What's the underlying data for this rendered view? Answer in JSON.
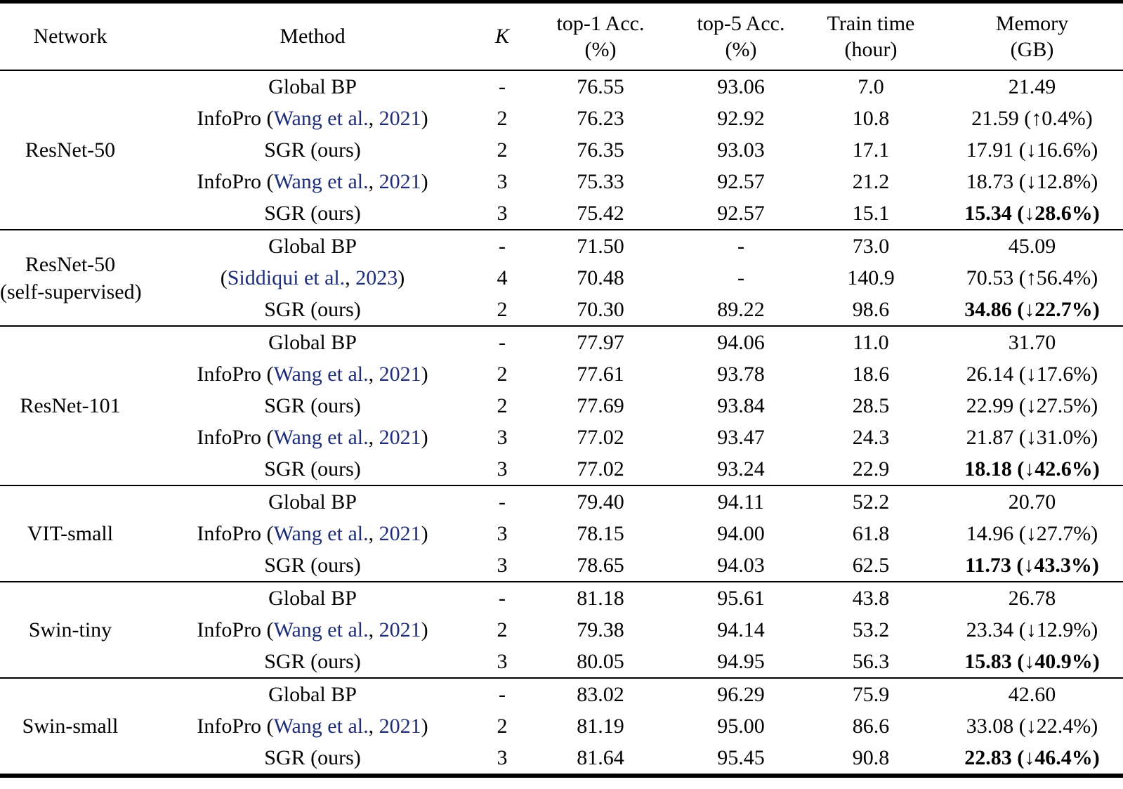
{
  "table": {
    "citation_color": "#1e2d78",
    "header": {
      "network": "Network",
      "method": "Method",
      "k": "K",
      "top1": [
        "top-1 Acc.",
        "(%)"
      ],
      "top5": [
        "top-5 Acc.",
        "(%)"
      ],
      "train": [
        "Train time",
        "(hour)"
      ],
      "memory": [
        "Memory",
        "(GB)"
      ]
    },
    "groups": [
      {
        "network": [
          "ResNet-50"
        ],
        "rows": [
          {
            "method": [
              {
                "t": "Global BP"
              }
            ],
            "k": "-",
            "top1": "76.55",
            "top5": "93.06",
            "train": "7.0",
            "memory": "21.49",
            "bold": false
          },
          {
            "method": [
              {
                "t": "InfoPro ("
              },
              {
                "t": "Wang et al.",
                "cite": true
              },
              {
                "t": ", "
              },
              {
                "t": "2021",
                "cite": true
              },
              {
                "t": ")"
              }
            ],
            "k": "2",
            "top1": "76.23",
            "top5": "92.92",
            "train": "10.8",
            "memory": "21.59 (↑0.4%)",
            "bold": false
          },
          {
            "method": [
              {
                "t": "SGR (ours)"
              }
            ],
            "k": "2",
            "top1": "76.35",
            "top5": "93.03",
            "train": "17.1",
            "memory": "17.91 (↓16.6%)",
            "bold": false
          },
          {
            "method": [
              {
                "t": "InfoPro ("
              },
              {
                "t": "Wang et al.",
                "cite": true
              },
              {
                "t": ", "
              },
              {
                "t": "2021",
                "cite": true
              },
              {
                "t": ")"
              }
            ],
            "k": "3",
            "top1": "75.33",
            "top5": "92.57",
            "train": "21.2",
            "memory": "18.73 (↓12.8%)",
            "bold": false
          },
          {
            "method": [
              {
                "t": "SGR (ours)"
              }
            ],
            "k": "3",
            "top1": "75.42",
            "top5": "92.57",
            "train": "15.1",
            "memory": "15.34 (↓28.6%)",
            "bold": true
          }
        ]
      },
      {
        "network": [
          "ResNet-50",
          "(self-supervised)"
        ],
        "rows": [
          {
            "method": [
              {
                "t": "Global BP"
              }
            ],
            "k": "-",
            "top1": "71.50",
            "top5": "-",
            "train": "73.0",
            "memory": "45.09",
            "bold": false
          },
          {
            "method": [
              {
                "t": "("
              },
              {
                "t": "Siddiqui et al.",
                "cite": true
              },
              {
                "t": ", "
              },
              {
                "t": "2023",
                "cite": true
              },
              {
                "t": ")"
              }
            ],
            "k": "4",
            "top1": "70.48",
            "top5": "-",
            "train": "140.9",
            "memory": "70.53 (↑56.4%)",
            "bold": false
          },
          {
            "method": [
              {
                "t": "SGR (ours)"
              }
            ],
            "k": "2",
            "top1": "70.30",
            "top5": "89.22",
            "train": "98.6",
            "memory": "34.86 (↓22.7%)",
            "bold": true
          }
        ]
      },
      {
        "network": [
          "ResNet-101"
        ],
        "rows": [
          {
            "method": [
              {
                "t": "Global BP"
              }
            ],
            "k": "-",
            "top1": "77.97",
            "top5": "94.06",
            "train": "11.0",
            "memory": "31.70",
            "bold": false
          },
          {
            "method": [
              {
                "t": "InfoPro ("
              },
              {
                "t": "Wang et al.",
                "cite": true
              },
              {
                "t": ", "
              },
              {
                "t": "2021",
                "cite": true
              },
              {
                "t": ")"
              }
            ],
            "k": "2",
            "top1": "77.61",
            "top5": "93.78",
            "train": "18.6",
            "memory": "26.14 (↓17.6%)",
            "bold": false
          },
          {
            "method": [
              {
                "t": "SGR (ours)"
              }
            ],
            "k": "2",
            "top1": "77.69",
            "top5": "93.84",
            "train": "28.5",
            "memory": "22.99 (↓27.5%)",
            "bold": false
          },
          {
            "method": [
              {
                "t": "InfoPro ("
              },
              {
                "t": "Wang et al.",
                "cite": true
              },
              {
                "t": ", "
              },
              {
                "t": "2021",
                "cite": true
              },
              {
                "t": ")"
              }
            ],
            "k": "3",
            "top1": "77.02",
            "top5": "93.47",
            "train": "24.3",
            "memory": "21.87 (↓31.0%)",
            "bold": false
          },
          {
            "method": [
              {
                "t": "SGR (ours)"
              }
            ],
            "k": "3",
            "top1": "77.02",
            "top5": "93.24",
            "train": "22.9",
            "memory": "18.18 (↓42.6%)",
            "bold": true
          }
        ]
      },
      {
        "network": [
          "VIT-small"
        ],
        "rows": [
          {
            "method": [
              {
                "t": "Global BP"
              }
            ],
            "k": "-",
            "top1": "79.40",
            "top5": "94.11",
            "train": "52.2",
            "memory": "20.70",
            "bold": false
          },
          {
            "method": [
              {
                "t": "InfoPro ("
              },
              {
                "t": "Wang et al.",
                "cite": true
              },
              {
                "t": ", "
              },
              {
                "t": "2021",
                "cite": true
              },
              {
                "t": ")"
              }
            ],
            "k": "3",
            "top1": "78.15",
            "top5": "94.00",
            "train": "61.8",
            "memory": "14.96 (↓27.7%)",
            "bold": false
          },
          {
            "method": [
              {
                "t": "SGR (ours)"
              }
            ],
            "k": "3",
            "top1": "78.65",
            "top5": "94.03",
            "train": "62.5",
            "memory": "11.73 (↓43.3%)",
            "bold": true
          }
        ]
      },
      {
        "network": [
          "Swin-tiny"
        ],
        "rows": [
          {
            "method": [
              {
                "t": "Global BP"
              }
            ],
            "k": "-",
            "top1": "81.18",
            "top5": "95.61",
            "train": "43.8",
            "memory": "26.78",
            "bold": false
          },
          {
            "method": [
              {
                "t": "InfoPro ("
              },
              {
                "t": "Wang et al.",
                "cite": true
              },
              {
                "t": ", "
              },
              {
                "t": "2021",
                "cite": true
              },
              {
                "t": ")"
              }
            ],
            "k": "2",
            "top1": "79.38",
            "top5": "94.14",
            "train": "53.2",
            "memory": "23.34 (↓12.9%)",
            "bold": false
          },
          {
            "method": [
              {
                "t": "SGR (ours)"
              }
            ],
            "k": "3",
            "top1": "80.05",
            "top5": "94.95",
            "train": "56.3",
            "memory": "15.83 (↓40.9%)",
            "bold": true
          }
        ]
      },
      {
        "network": [
          "Swin-small"
        ],
        "rows": [
          {
            "method": [
              {
                "t": "Global BP"
              }
            ],
            "k": "-",
            "top1": "83.02",
            "top5": "96.29",
            "train": "75.9",
            "memory": "42.60",
            "bold": false
          },
          {
            "method": [
              {
                "t": "InfoPro ("
              },
              {
                "t": "Wang et al.",
                "cite": true
              },
              {
                "t": ", "
              },
              {
                "t": "2021",
                "cite": true
              },
              {
                "t": ")"
              }
            ],
            "k": "2",
            "top1": "81.19",
            "top5": "95.00",
            "train": "86.6",
            "memory": "33.08 (↓22.4%)",
            "bold": false
          },
          {
            "method": [
              {
                "t": "SGR (ours)"
              }
            ],
            "k": "3",
            "top1": "81.64",
            "top5": "95.45",
            "train": "90.8",
            "memory": "22.83 (↓46.4%)",
            "bold": true
          }
        ]
      }
    ]
  }
}
